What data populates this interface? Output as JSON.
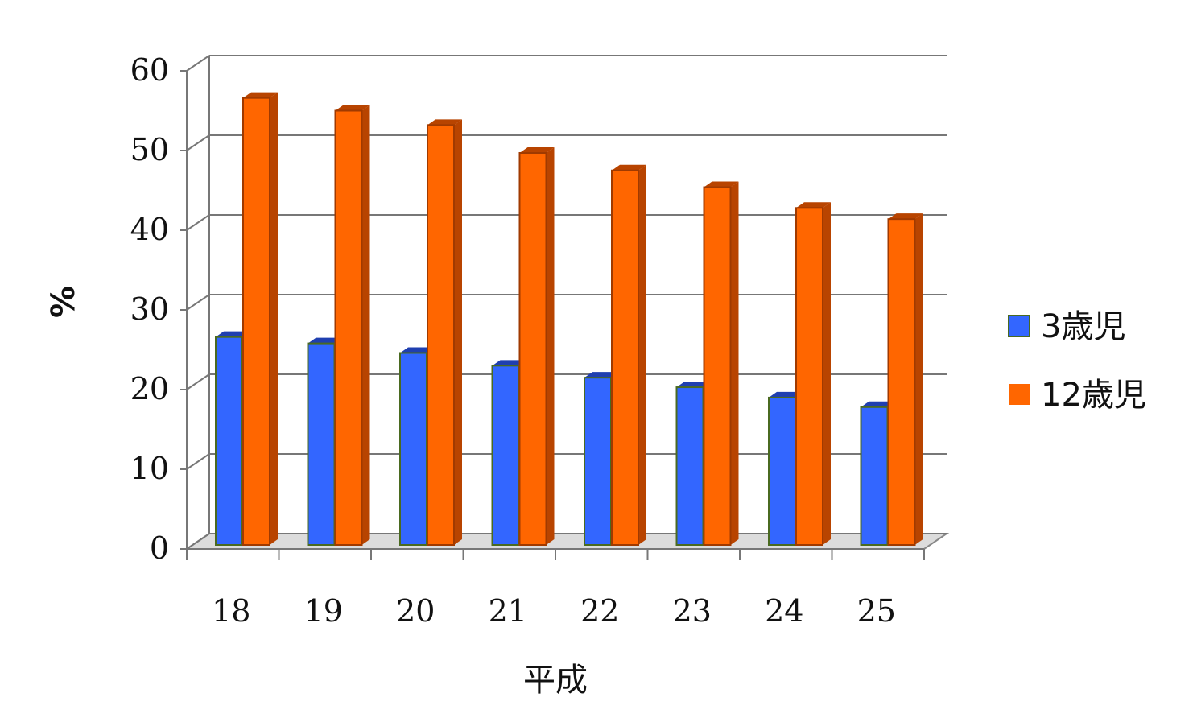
{
  "chart_data": {
    "type": "bar",
    "style": "3d-clustered-column",
    "categories": [
      "18",
      "19",
      "20",
      "21",
      "22",
      "23",
      "24",
      "25"
    ],
    "series": [
      {
        "name": "3歳児",
        "color": "#3366ff",
        "side_color": "#1f3fb0",
        "values": [
          26.8,
          26.0,
          24.8,
          23.2,
          21.7,
          20.5,
          19.2,
          18.0
        ]
      },
      {
        "name": "12歳児",
        "color": "#ff6600",
        "side_color": "#b84400",
        "values": [
          56.8,
          55.2,
          53.4,
          49.9,
          47.7,
          45.6,
          43.0,
          41.6
        ]
      }
    ],
    "xlabel": "平成",
    "ylabel": "%",
    "ylim": [
      0,
      60
    ],
    "yticks": [
      "0",
      "10",
      "20",
      "30",
      "40",
      "50",
      "60"
    ],
    "grid": true,
    "legend": "right"
  }
}
